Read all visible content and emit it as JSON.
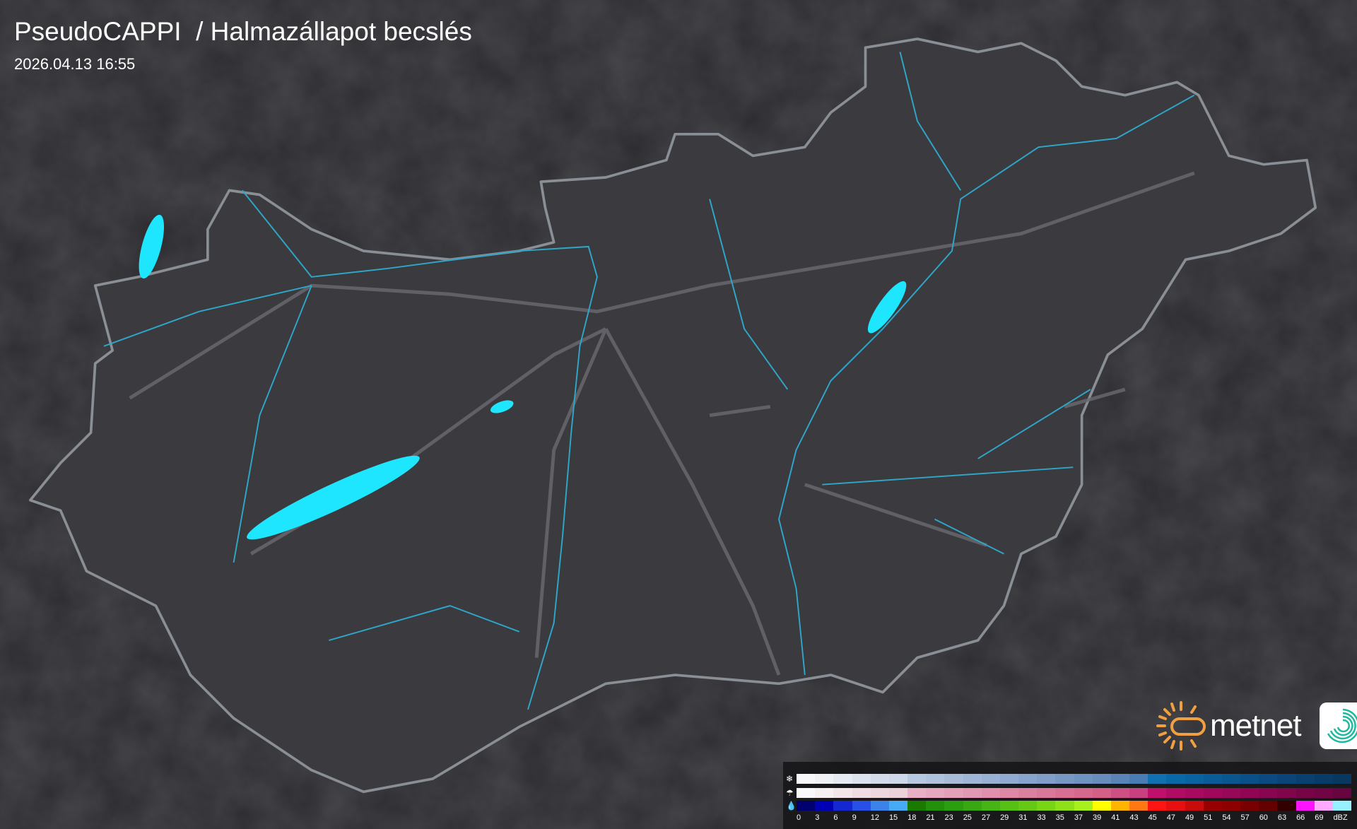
{
  "header": {
    "title": "PseudoCAPPI  / Halmazállapot becslés",
    "timestamp": "2026.04.13 16:55"
  },
  "logo": {
    "brand": "metnet",
    "icon": "metnet-swirl-icon"
  },
  "colors": {
    "background": "#2b2b2f",
    "country_fill": "#3a3a3f",
    "border": "#8a8f96",
    "rivers": "#2fa6c8",
    "lakes": "#1ee6ff",
    "roads": "#6a6a70"
  },
  "legend": {
    "unit": "dBZ",
    "rows": [
      {
        "type": "snow",
        "icon": "snowflake-icon",
        "colors": [
          "#f8f8fa",
          "#f0f2f6",
          "#e6eaf2",
          "#dde3ee",
          "#d4dcea",
          "#cfd8e8",
          "#b8c8e0",
          "#b0c2dc",
          "#a8bcd8",
          "#a0b6d6",
          "#98b0d2",
          "#90aad0",
          "#88a4cc",
          "#809ec8",
          "#7898c4",
          "#7092c0",
          "#688cbc",
          "#5a84b8",
          "#4a7cb4",
          "#1070b0",
          "#0868a8",
          "#0a62a0",
          "#0a5c98",
          "#0a5690",
          "#0a5088",
          "#0a4a80",
          "#0a4478",
          "#0a4070",
          "#083c68",
          "#083860"
        ]
      },
      {
        "type": "mixed",
        "icon": "sleet-icon",
        "colors": [
          "#f8f8fa",
          "#f6f0f2",
          "#f2e6ea",
          "#f0dde4",
          "#eed6de",
          "#ecd0da",
          "#e8b0c4",
          "#e6a8be",
          "#e4a0b8",
          "#e298b2",
          "#e090ac",
          "#de88a6",
          "#dc80a0",
          "#da789a",
          "#d87094",
          "#d6688e",
          "#d46088",
          "#cc5084",
          "#c84080",
          "#c0106c",
          "#b00c64",
          "#a80a60",
          "#a0085c",
          "#980858",
          "#900654",
          "#880650",
          "#80064c",
          "#780448",
          "#700444",
          "#680440"
        ]
      },
      {
        "type": "rain",
        "icon": "raindrop-icon",
        "colors": [
          "#00006e",
          "#0000b4",
          "#1428d2",
          "#2850e6",
          "#3c82eb",
          "#46aaf5",
          "#1a7a00",
          "#22900a",
          "#2a9e0e",
          "#38a812",
          "#46b414",
          "#56c014",
          "#66c814",
          "#78d414",
          "#8ee018",
          "#a6f01e",
          "#ffff00",
          "#ffb400",
          "#ff7814",
          "#ff1414",
          "#e61010",
          "#c80c0c",
          "#960000",
          "#8c0000",
          "#780000",
          "#640000",
          "#320000",
          "#ff14ff",
          "#ffaaff",
          "#96f0ff"
        ]
      }
    ],
    "labels": [
      "0",
      "3",
      "6",
      "9",
      "12",
      "15",
      "18",
      "21",
      "23",
      "25",
      "27",
      "29",
      "31",
      "33",
      "35",
      "37",
      "39",
      "41",
      "43",
      "45",
      "47",
      "49",
      "51",
      "54",
      "57",
      "60",
      "63",
      "66",
      "69",
      "dBZ"
    ]
  }
}
